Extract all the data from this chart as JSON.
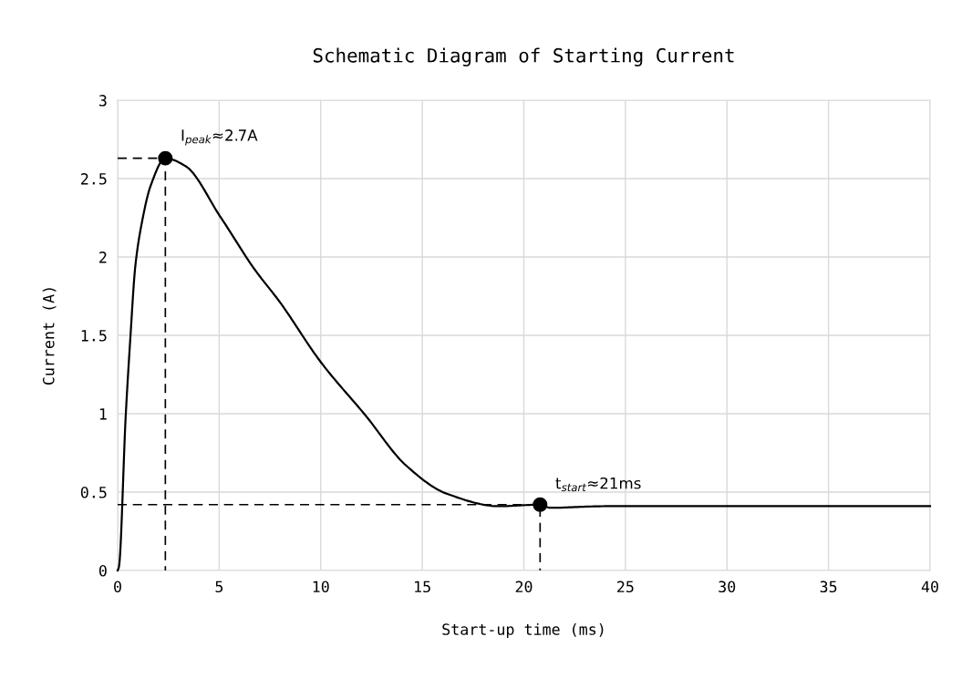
{
  "chart_data": {
    "type": "line",
    "title": "Schematic Diagram of Starting Current",
    "xlabel": "Start-up time (ms)",
    "ylabel": "Current (A)",
    "xlim": [
      0,
      40
    ],
    "xticks": [
      0,
      5,
      10,
      15,
      20,
      25,
      30,
      35,
      40
    ],
    "ylim": [
      0,
      3
    ],
    "yticks": [
      0,
      0.5,
      1,
      1.5,
      2,
      2.5,
      3
    ],
    "grid": true,
    "legend": false,
    "series": [
      {
        "color": "#000000",
        "line_style": "solid",
        "marker": "none",
        "x": [
          0,
          0.06,
          0.4,
          0.63,
          0.87,
          1.18,
          1.64,
          2.35,
          3.34,
          5.04,
          6.75,
          8.0,
          10.0,
          12.2,
          14.2,
          16.2,
          18.8,
          20.8,
          21.3,
          24,
          30,
          40
        ],
        "values": [
          0,
          0.02,
          0.99,
          1.49,
          1.94,
          2.21,
          2.46,
          2.63,
          2.58,
          2.26,
          1.92,
          1.71,
          1.33,
          0.99,
          0.67,
          0.49,
          0.41,
          0.42,
          0.4,
          0.41,
          0.41,
          0.41
        ]
      },
      {
        "type": "line",
        "color": "#000000",
        "line_style": "dashed",
        "marker": "none",
        "x": [
          0,
          2.35,
          2.35
        ],
        "values": [
          2.63,
          2.63,
          0
        ]
      },
      {
        "type": "line",
        "color": "#000000",
        "line_style": "dashed",
        "marker": "none",
        "x": [
          0,
          20.8,
          20.8
        ],
        "values": [
          0.42,
          0.42,
          0
        ]
      },
      {
        "type": "scatter",
        "color": "#000000",
        "marker": "circle",
        "x": [
          2.35,
          20.8
        ],
        "values": [
          2.63,
          0.42
        ]
      }
    ],
    "annotations": [
      {
        "text": "I$_{peak}$≈2.7A",
        "x": 2.35,
        "y": 2.63
      },
      {
        "text": "t$_{start}$≈21ms",
        "x": 20.8,
        "y": 0.42
      }
    ]
  }
}
